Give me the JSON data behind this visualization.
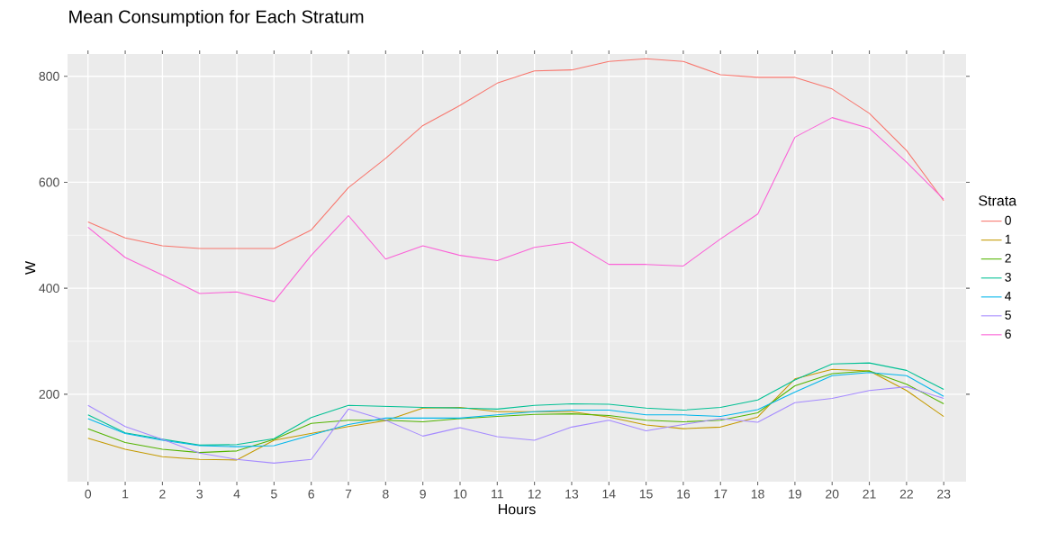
{
  "chart_data": {
    "type": "line",
    "title": "Mean Consumption for Each Stratum",
    "xlabel": "Hours",
    "ylabel": "W",
    "legend_title": "Strata",
    "legend": "right",
    "grid": true,
    "x": [
      0,
      1,
      2,
      3,
      4,
      5,
      6,
      7,
      8,
      9,
      10,
      11,
      12,
      13,
      14,
      15,
      16,
      17,
      18,
      19,
      20,
      21,
      22,
      23
    ],
    "xlim": [
      -0.55,
      23.6
    ],
    "xticks": [
      0,
      1,
      2,
      3,
      4,
      5,
      6,
      7,
      8,
      9,
      10,
      11,
      12,
      13,
      14,
      15,
      16,
      17,
      18,
      19,
      20,
      21,
      22,
      23
    ],
    "ylim": [
      35,
      842
    ],
    "yticks": [
      200,
      400,
      600,
      800
    ],
    "series": [
      {
        "name": "0",
        "color": "#f8766d",
        "values": [
          525,
          495,
          480,
          475,
          475,
          475,
          510,
          590,
          645,
          707,
          745,
          787,
          810,
          812,
          828,
          833,
          828,
          803,
          798,
          798,
          776,
          730,
          660,
          565
        ]
      },
      {
        "name": "1",
        "color": "#c49a00",
        "values": [
          117,
          96,
          82,
          77,
          76,
          113,
          126,
          139,
          150,
          174,
          175,
          167,
          167,
          167,
          157,
          142,
          135,
          138,
          157,
          229,
          247,
          244,
          207,
          158
        ]
      },
      {
        "name": "2",
        "color": "#53b400",
        "values": [
          135,
          109,
          96,
          90,
          93,
          115,
          145,
          151,
          151,
          148,
          154,
          158,
          162,
          163,
          160,
          151,
          148,
          151,
          165,
          216,
          239,
          244,
          219,
          182
        ]
      },
      {
        "name": "3",
        "color": "#00c094",
        "values": [
          161,
          127,
          115,
          104,
          105,
          116,
          156,
          179,
          177,
          175,
          174,
          172,
          179,
          182,
          181,
          174,
          170,
          175,
          189,
          227,
          257,
          259,
          245,
          209
        ]
      },
      {
        "name": "4",
        "color": "#00b6eb",
        "values": [
          154,
          126,
          113,
          103,
          101,
          103,
          123,
          143,
          155,
          155,
          155,
          161,
          167,
          170,
          170,
          161,
          161,
          158,
          171,
          204,
          235,
          241,
          235,
          196
        ]
      },
      {
        "name": "5",
        "color": "#a58aff",
        "values": [
          179,
          139,
          115,
          89,
          77,
          70,
          77,
          172,
          151,
          121,
          137,
          120,
          113,
          138,
          151,
          131,
          143,
          154,
          147,
          184,
          192,
          207,
          214,
          192
        ]
      },
      {
        "name": "6",
        "color": "#fb61d7",
        "values": [
          515,
          458,
          425,
          390,
          393,
          375,
          462,
          537,
          455,
          480,
          462,
          452,
          477,
          487,
          445,
          445,
          442,
          493,
          540,
          685,
          722,
          702,
          638,
          568
        ]
      }
    ]
  }
}
